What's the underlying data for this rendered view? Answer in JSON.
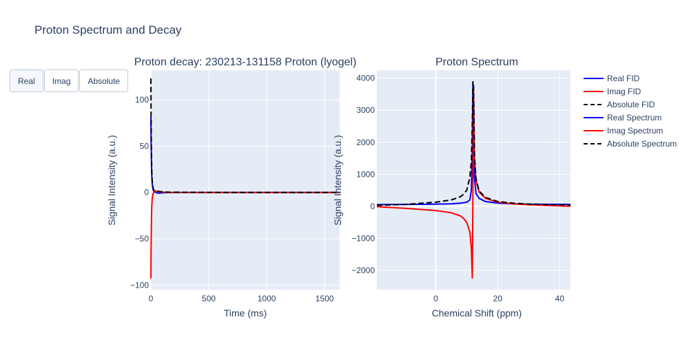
{
  "title": "Proton Spectrum and Decay",
  "buttons": [
    {
      "label": "Real",
      "active": true
    },
    {
      "label": "Imag",
      "active": false
    },
    {
      "label": "Absolute",
      "active": false
    }
  ],
  "colors": {
    "plot_bg": "#e5ecf6",
    "grid": "#ffffff",
    "zeroline": "#ffffff",
    "real": "#0000ff",
    "imag": "#ff0000",
    "absolute": "#000000"
  },
  "chart_data": [
    {
      "type": "line",
      "title": "Proton decay: 230213-131158 Proton (lyogel)",
      "xlabel": "Time (ms)",
      "ylabel": "Signal Intensity (a.u.)",
      "xlim": [
        0,
        1630
      ],
      "ylim": [
        -105,
        132
      ],
      "xticks": [
        0,
        500,
        1000,
        1500
      ],
      "yticks": [
        -100,
        -50,
        0,
        50,
        100
      ],
      "ytick_labels": [
        "−100",
        "−50",
        "0",
        "50",
        "100"
      ],
      "series": [
        {
          "name": "Real FID",
          "style": "solid",
          "color": "#0000ff",
          "x": [
            0,
            2,
            5,
            8,
            12,
            18,
            25,
            35,
            50,
            70,
            100,
            150,
            300,
            600,
            1000,
            1630
          ],
          "y": [
            82,
            55,
            32,
            18,
            9,
            4,
            1.5,
            0.5,
            -0.5,
            -0.8,
            -0.5,
            -0.2,
            0,
            0,
            0,
            0
          ]
        },
        {
          "name": "Imag FID",
          "style": "solid",
          "color": "#ff0000",
          "x": [
            0,
            2,
            5,
            8,
            12,
            18,
            25,
            35,
            50,
            70,
            100,
            150,
            300,
            600,
            1000,
            1630
          ],
          "y": [
            -93,
            -60,
            -30,
            -14,
            -6,
            -2,
            0,
            1.5,
            1.5,
            0.8,
            0.3,
            0,
            0,
            0,
            0,
            0
          ]
        },
        {
          "name": "Absolute FID",
          "style": "dash",
          "color": "#000000",
          "x": [
            0,
            2,
            5,
            8,
            12,
            18,
            25,
            35,
            50,
            70,
            100,
            150,
            300,
            600,
            1000,
            1630
          ],
          "y": [
            123,
            82,
            44,
            23,
            11,
            5,
            2.5,
            1.5,
            1.2,
            1,
            0.6,
            0.3,
            0.1,
            0,
            0,
            0
          ]
        }
      ]
    },
    {
      "type": "line",
      "title": "Proton Spectrum",
      "xlabel": "Chemical Shift (ppm)",
      "ylabel": "Signal Intensity (a.u.)",
      "xlim": [
        -19,
        43.5
      ],
      "ylim": [
        -2600,
        4250
      ],
      "xticks": [
        0,
        20,
        40
      ],
      "yticks": [
        -2000,
        -1000,
        0,
        1000,
        2000,
        3000,
        4000
      ],
      "ytick_labels": [
        "−2000",
        "−1000",
        "0",
        "1000",
        "2000",
        "3000",
        "4000"
      ],
      "series": [
        {
          "name": "Real Spectrum",
          "style": "solid",
          "color": "#0000ff",
          "x": [
            -19,
            -10,
            0,
            5,
            8,
            10,
            11,
            11.5,
            11.8,
            12,
            12.2,
            12.5,
            13,
            14,
            16,
            20,
            25,
            30,
            43.5
          ],
          "y": [
            55,
            60,
            70,
            80,
            100,
            130,
            200,
            500,
            1800,
            3900,
            2500,
            900,
            400,
            250,
            150,
            100,
            80,
            70,
            60
          ]
        },
        {
          "name": "Imag Spectrum",
          "style": "solid",
          "color": "#ff0000",
          "x": [
            -19,
            -10,
            0,
            5,
            8,
            9,
            10,
            11,
            11.5,
            11.8,
            12.0,
            12.2,
            12.5,
            13,
            14,
            16,
            20,
            25,
            30,
            43.5
          ],
          "y": [
            -10,
            -60,
            -130,
            -200,
            -300,
            -380,
            -500,
            -800,
            -1300,
            -2250,
            500,
            3700,
            1500,
            800,
            450,
            250,
            130,
            80,
            50,
            0
          ]
        },
        {
          "name": "Absolute Spectrum",
          "style": "dash",
          "color": "#000000",
          "x": [
            -19,
            -10,
            0,
            5,
            8,
            9,
            10,
            11,
            11.5,
            11.8,
            12,
            12.2,
            12.5,
            13,
            14,
            16,
            20,
            25,
            30,
            43.5
          ],
          "y": [
            30,
            60,
            130,
            200,
            300,
            380,
            500,
            900,
            1400,
            2600,
            3900,
            3800,
            1600,
            850,
            480,
            280,
            150,
            100,
            70,
            40
          ]
        }
      ]
    }
  ],
  "legend": [
    {
      "label": "Real FID",
      "color": "#0000ff",
      "style": "solid"
    },
    {
      "label": "Imag FID",
      "color": "#ff0000",
      "style": "solid"
    },
    {
      "label": "Absolute FID",
      "color": "#000000",
      "style": "dash"
    },
    {
      "label": "Real Spectrum",
      "color": "#0000ff",
      "style": "solid"
    },
    {
      "label": "Imag Spectrum",
      "color": "#ff0000",
      "style": "solid"
    },
    {
      "label": "Absolute Spectrum",
      "color": "#000000",
      "style": "dash"
    }
  ]
}
